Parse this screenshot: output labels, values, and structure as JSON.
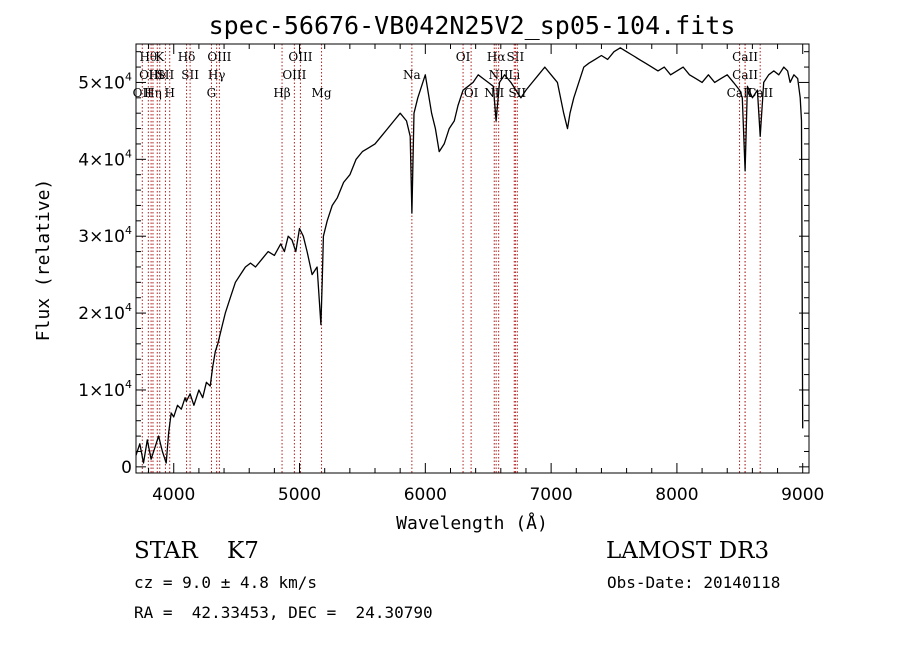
{
  "chart_data": {
    "type": "line",
    "title": "spec-56676-VB042N25V2_sp05-104.fits",
    "xlabel": "Wavelength (Å)",
    "ylabel": "Flux (relative)",
    "xlim": [
      3700,
      9050
    ],
    "ylim": [
      -800,
      55000
    ],
    "x_ticks": [
      {
        "value": 4000,
        "label": "4000"
      },
      {
        "value": 5000,
        "label": "5000"
      },
      {
        "value": 6000,
        "label": "6000"
      },
      {
        "value": 7000,
        "label": "7000"
      },
      {
        "value": 8000,
        "label": "8000"
      },
      {
        "value": 9000,
        "label": "9000"
      }
    ],
    "y_ticks": [
      {
        "value": 0,
        "mantissa": "0",
        "exp": ""
      },
      {
        "value": 10000,
        "mantissa": "1×10",
        "exp": "4"
      },
      {
        "value": 20000,
        "mantissa": "2×10",
        "exp": "4"
      },
      {
        "value": 30000,
        "mantissa": "3×10",
        "exp": "4"
      },
      {
        "value": 40000,
        "mantissa": "4×10",
        "exp": "4"
      },
      {
        "value": 50000,
        "mantissa": "5×10",
        "exp": "4"
      }
    ],
    "grid": false,
    "series": [
      {
        "color": "#000000",
        "x": [
          3700,
          3730,
          3760,
          3790,
          3820,
          3850,
          3880,
          3910,
          3940,
          3960,
          3980,
          4000,
          4030,
          4060,
          4090,
          4100,
          4130,
          4160,
          4200,
          4230,
          4260,
          4290,
          4310,
          4330,
          4350,
          4380,
          4410,
          4450,
          4490,
          4530,
          4570,
          4610,
          4650,
          4700,
          4750,
          4800,
          4850,
          4880,
          4910,
          4940,
          4970,
          5000,
          5030,
          5060,
          5100,
          5140,
          5170,
          5180,
          5190,
          5220,
          5260,
          5300,
          5350,
          5400,
          5450,
          5500,
          5550,
          5600,
          5650,
          5700,
          5750,
          5800,
          5850,
          5880,
          5893,
          5910,
          5940,
          5980,
          6000,
          6020,
          6050,
          6080,
          6110,
          6150,
          6190,
          6230,
          6260,
          6300,
          6340,
          6380,
          6420,
          6460,
          6500,
          6540,
          6563,
          6590,
          6630,
          6680,
          6720,
          6760,
          6800,
          6850,
          6900,
          6950,
          7000,
          7050,
          7100,
          7130,
          7150,
          7180,
          7220,
          7260,
          7300,
          7350,
          7400,
          7450,
          7500,
          7550,
          7600,
          7650,
          7700,
          7750,
          7800,
          7850,
          7900,
          7950,
          8000,
          8050,
          8100,
          8150,
          8200,
          8250,
          8300,
          8350,
          8400,
          8450,
          8498,
          8520,
          8542,
          8560,
          8600,
          8640,
          8662,
          8690,
          8730,
          8770,
          8810,
          8850,
          8880,
          8900,
          8930,
          8960,
          8980,
          8990,
          9000
        ],
        "y": [
          1500,
          3000,
          500,
          3500,
          1000,
          2500,
          4000,
          2000,
          500,
          4500,
          7000,
          6500,
          8000,
          7500,
          9000,
          8500,
          9500,
          8000,
          10000,
          9000,
          11000,
          10500,
          13000,
          15000,
          16000,
          18000,
          20000,
          22000,
          24000,
          25000,
          26000,
          26500,
          26000,
          27000,
          28000,
          27500,
          29000,
          28000,
          30000,
          29500,
          28000,
          31000,
          30000,
          28000,
          25000,
          26000,
          18500,
          24000,
          30000,
          32000,
          34000,
          35000,
          37000,
          38000,
          40000,
          41000,
          41500,
          42000,
          43000,
          44000,
          45000,
          46000,
          45000,
          43000,
          33000,
          46000,
          48000,
          50000,
          51000,
          49000,
          46000,
          44000,
          41000,
          42000,
          44000,
          45000,
          47000,
          49000,
          49500,
          50000,
          51000,
          50500,
          50000,
          49500,
          45000,
          50000,
          51000,
          50000,
          49000,
          48000,
          49000,
          50000,
          51000,
          52000,
          51000,
          50000,
          46000,
          44000,
          46000,
          48000,
          50000,
          52000,
          52500,
          53000,
          53500,
          53000,
          54000,
          54500,
          54000,
          53500,
          53000,
          52500,
          52000,
          51500,
          52000,
          51000,
          51500,
          52000,
          51000,
          50500,
          50000,
          51000,
          50000,
          50500,
          51000,
          50000,
          49000,
          48000,
          38500,
          49500,
          48000,
          49000,
          43000,
          50000,
          51000,
          51500,
          51000,
          52000,
          51500,
          50000,
          51000,
          50500,
          48000,
          45000,
          5000
        ]
      }
    ],
    "line_markers": [
      {
        "x": 3750,
        "label": "OII",
        "row": 2
      },
      {
        "x": 3798,
        "label": "Hθ",
        "row": 0
      },
      {
        "x": 3820,
        "label": "OIII",
        "row": 1
      },
      {
        "x": 3835,
        "label": "Hη",
        "row": 2
      },
      {
        "x": 3869,
        "label": "He",
        "row": 1
      },
      {
        "x": 3889,
        "label": "K",
        "row": 0
      },
      {
        "x": 3934,
        "label": "SII",
        "row": 1
      },
      {
        "x": 3968,
        "label": "H",
        "row": 2
      },
      {
        "x": 4102,
        "label": "Hδ",
        "row": 0
      },
      {
        "x": 4130,
        "label": "SII",
        "row": 1
      },
      {
        "x": 4300,
        "label": "G",
        "row": 2
      },
      {
        "x": 4341,
        "label": "Hγ",
        "row": 1
      },
      {
        "x": 4363,
        "label": "OIII",
        "row": 0
      },
      {
        "x": 4861,
        "label": "Hβ",
        "row": 2
      },
      {
        "x": 4959,
        "label": "OIII",
        "row": 1
      },
      {
        "x": 5007,
        "label": "OIII",
        "row": 0
      },
      {
        "x": 5175,
        "label": "Mg",
        "row": 2
      },
      {
        "x": 5893,
        "label": "Na",
        "row": 1
      },
      {
        "x": 6300,
        "label": "OI",
        "row": 0
      },
      {
        "x": 6364,
        "label": "OI",
        "row": 2
      },
      {
        "x": 6548,
        "label": "NII",
        "row": 2
      },
      {
        "x": 6563,
        "label": "Hα",
        "row": 0
      },
      {
        "x": 6583,
        "label": "NII",
        "row": 1
      },
      {
        "x": 6707,
        "label": "Li",
        "row": 1
      },
      {
        "x": 6716,
        "label": "SII",
        "row": 0
      },
      {
        "x": 6731,
        "label": "SII",
        "row": 2
      },
      {
        "x": 8498,
        "label": "CaII",
        "row": 2
      },
      {
        "x": 8542,
        "label": "CaII",
        "row": 1
      },
      {
        "x": 8542,
        "label": "CaII",
        "row": 0
      },
      {
        "x": 8662,
        "label": "CaII",
        "row": 2
      }
    ],
    "marker_color": "#b22222"
  },
  "info": {
    "class_text": "STAR    K7",
    "survey": "LAMOST DR3",
    "cz_text": "cz = 9.0 ± 4.8 km/s",
    "obs_date": "Obs-Date: 20140118",
    "coords": "RA =  42.33453, DEC =  24.30790"
  }
}
